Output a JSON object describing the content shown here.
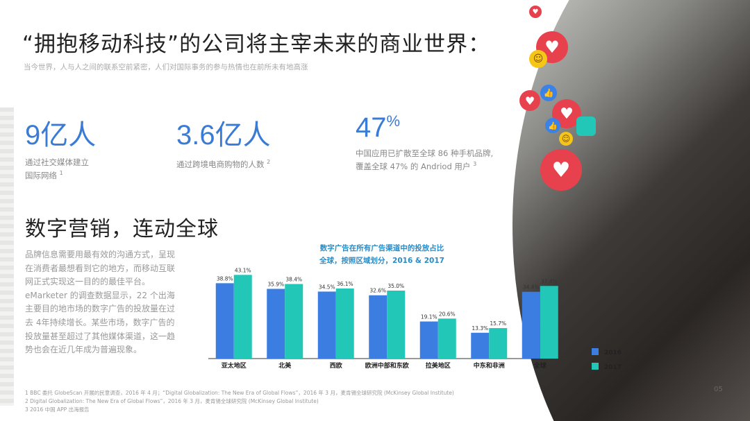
{
  "header": {
    "title": "“拥抱移动科技”的公司将主宰未来的商业世界：",
    "subtitle": "当今世界，人与人之间的联系空前紧密，人们对国际事务的参与热情也在前所未有地高涨"
  },
  "stats": [
    {
      "value": "9亿人",
      "suffix": "",
      "desc1": "通过社交媒体建立",
      "desc2": "国际网络",
      "note": "1"
    },
    {
      "value": "3.6亿人",
      "suffix": "",
      "desc1": "通过跨境电商购物的人数",
      "desc2": "",
      "note": "2"
    },
    {
      "value": "47",
      "suffix": "%",
      "desc1": "中国应用已扩散至全球 86 种手机品牌,",
      "desc2": "覆盖全球 47% 的 Andriod 用户",
      "note": "3"
    }
  ],
  "section": {
    "title": "数字营销，连动全球",
    "paragraph": "品牌信息需要用最有效的沟通方式，呈现在消费者最想看到它的地方，而移动互联网正式实现这一目的的最佳平台。eMarketer 的调查数据显示，22 个出海主要目的地市场的数字广告的投放量在过去 4年持续增长。某些市场，数字广告的投放量甚至超过了其他媒体渠道，这一趋势也会在近几年成为普遍现象。"
  },
  "chart_data": {
    "type": "bar",
    "title": "数字广告在所有广告渠道中的投放占比",
    "subtitle": "全球，按照区域划分，2016 & 2017",
    "categories": [
      "亚太地区",
      "北美",
      "西欧",
      "欧洲中部和东欧",
      "拉美地区",
      "中东和非洲",
      "全球"
    ],
    "series": [
      {
        "name": "2016",
        "color": "#3b7de0",
        "values": [
          38.8,
          35.9,
          34.5,
          32.6,
          19.1,
          13.3,
          34.4
        ]
      },
      {
        "name": "2017",
        "color": "#22c7b8",
        "values": [
          43.1,
          38.4,
          36.1,
          35.0,
          20.6,
          15.7,
          37.4
        ]
      }
    ],
    "value_labels": [
      [
        "38.8%",
        "35.9%",
        "34.5%",
        "32.6%",
        "19.1%",
        "13.3%",
        "34.4%"
      ],
      [
        "43.1%",
        "38.4%",
        "36.1%",
        "35.0%",
        "20.6%",
        "15.7%",
        "37.4%"
      ]
    ],
    "legend": "right",
    "grid": false
  },
  "footnotes": [
    "1 BBC 委托 GlobeScan 开展的民意调查，2016 年 4 月；“Digital Globalization: The New Era of Global Flows”，2016 年 3 月，麦肯锡全球研究院 (McKinsey Global Institute)",
    "2 Digital Globalization: The New Era of Global Flows”，2016 年 3 月，麦肯锡全球研究院 (McKinsey Global Institute)",
    "3 2016 中国 APP 出海报告"
  ],
  "page_number": "05"
}
